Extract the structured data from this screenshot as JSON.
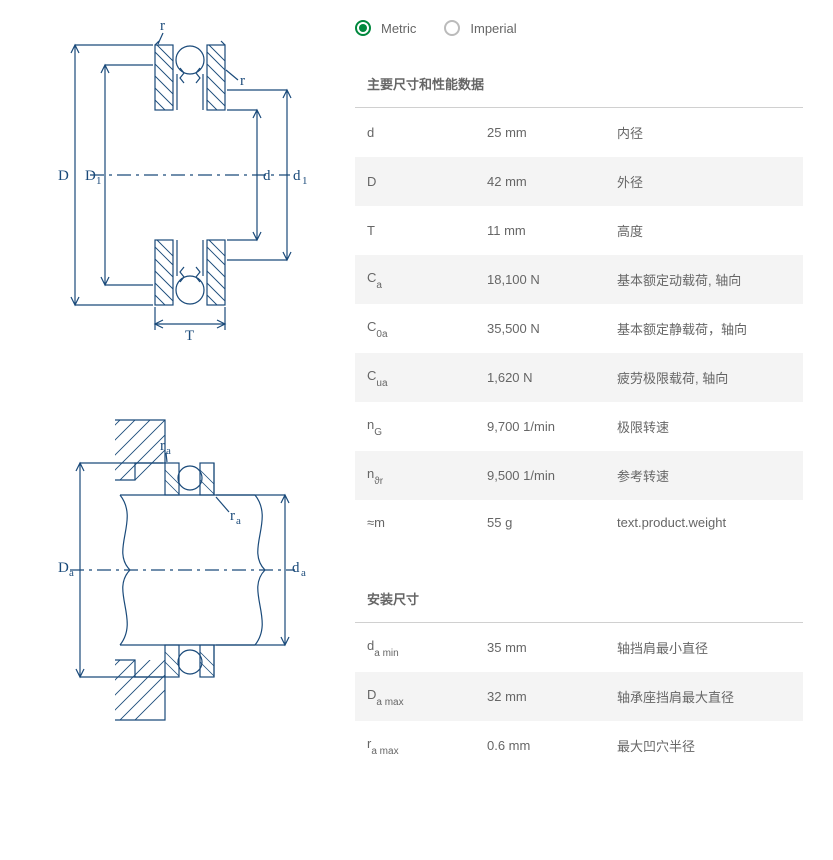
{
  "units": {
    "metric": "Metric",
    "imperial": "Imperial",
    "selected": "metric"
  },
  "sections": {
    "main_title": "主要尺寸和性能数据",
    "mount_title": "安装尺寸"
  },
  "main_specs": [
    {
      "symbol": "d",
      "sub": "",
      "value": "25 mm",
      "desc": "内径"
    },
    {
      "symbol": "D",
      "sub": "",
      "value": "42 mm",
      "desc": "外径"
    },
    {
      "symbol": "T",
      "sub": "",
      "value": "11 mm",
      "desc": "高度"
    },
    {
      "symbol": "C",
      "sub": "a",
      "value": "18,100 N",
      "desc": "基本额定动载荷, 轴向"
    },
    {
      "symbol": "C",
      "sub": "0a",
      "value": "35,500 N",
      "desc": "基本额定静载荷，轴向"
    },
    {
      "symbol": "C",
      "sub": "ua",
      "value": "1,620 N",
      "desc": "疲劳极限载荷, 轴向"
    },
    {
      "symbol": "n",
      "sub": "G",
      "value": "9,700 1/min",
      "desc": "极限转速"
    },
    {
      "symbol": "n",
      "sub": "ϑr",
      "value": "9,500 1/min",
      "desc": "参考转速"
    },
    {
      "symbol": "≈m",
      "sub": "",
      "value": "55 g",
      "desc": "text.product.weight"
    }
  ],
  "mount_specs": [
    {
      "symbol": "d",
      "sub": "a min",
      "value": "35 mm",
      "desc": "轴挡肩最小直径"
    },
    {
      "symbol": "D",
      "sub": "a max",
      "value": "32 mm",
      "desc": "轴承座挡肩最大直径"
    },
    {
      "symbol": "r",
      "sub": "a max",
      "value": "0.6 mm",
      "desc": "最大凹穴半径"
    }
  ],
  "diagram_labels": {
    "top": {
      "D": "D",
      "D1": "D₁",
      "d": "d",
      "d1": "d₁",
      "r": "r",
      "T": "T"
    },
    "bottom": {
      "Da": "D",
      "Da_sub": "a",
      "da": "d",
      "da_sub": "a",
      "ra": "r",
      "ra_sub": "a"
    }
  },
  "diagram_style": {
    "stroke": "#1a4a7a",
    "hatch": "#1a4a7a",
    "stroke_width": 1.2,
    "font_family": "Times, 'Times New Roman', serif",
    "label_fontsize": 15,
    "sub_fontsize": 11
  }
}
